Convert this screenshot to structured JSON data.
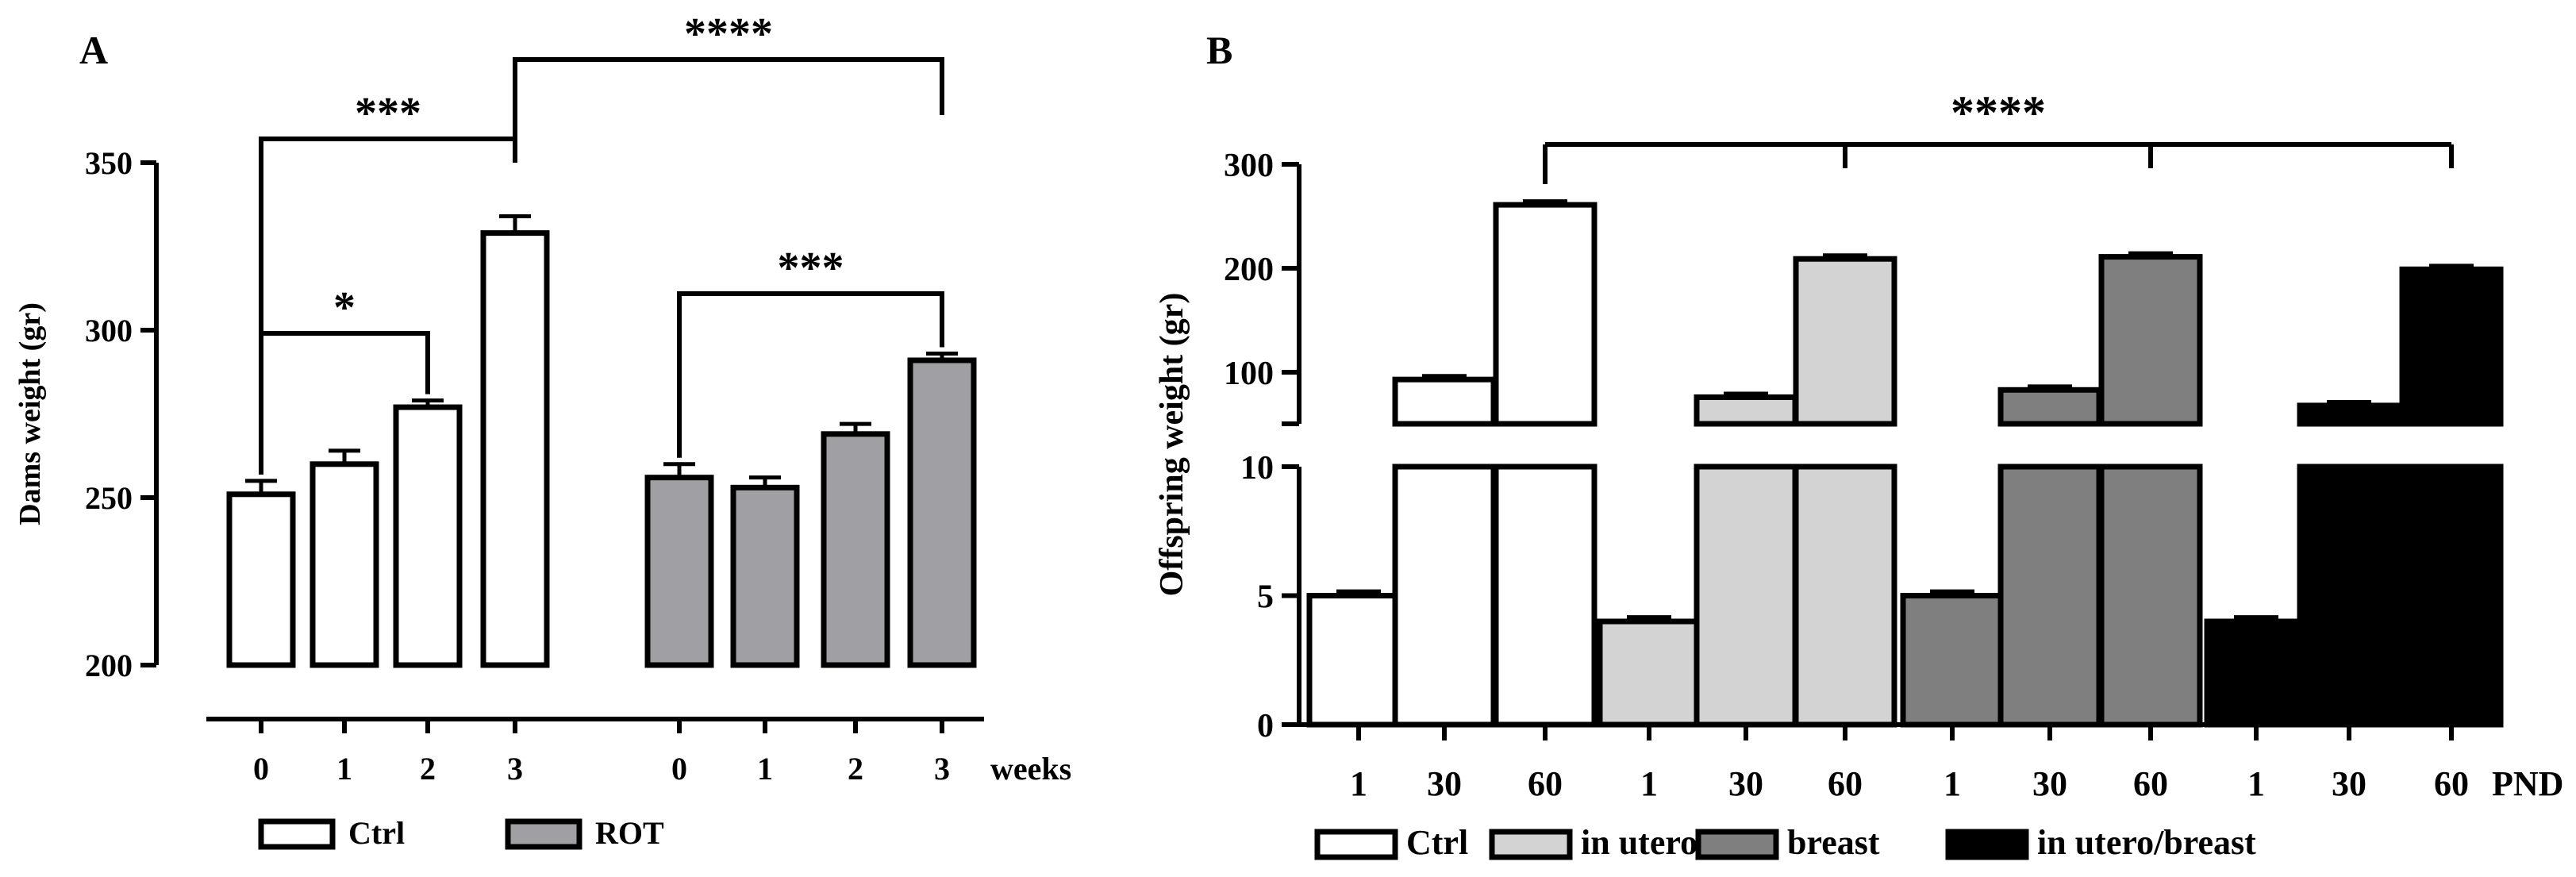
{
  "chart_data": [
    {
      "type": "bar",
      "panel_label": "A",
      "ylabel": "Dams weight (gr)",
      "xlabel": "weeks",
      "ylim": [
        200,
        350
      ],
      "yticks": [
        200,
        250,
        300,
        350
      ],
      "groups": [
        {
          "name": "Ctrl",
          "color": "#ffffff",
          "categories": [
            "0",
            "1",
            "2",
            "3"
          ],
          "values": [
            251,
            260,
            277,
            329
          ],
          "errors": [
            4,
            4,
            2,
            5
          ]
        },
        {
          "name": "ROT",
          "color": "#a0a0a4",
          "categories": [
            "0",
            "1",
            "2",
            "3"
          ],
          "values": [
            256,
            253,
            269,
            291
          ],
          "errors": [
            4,
            3,
            3,
            2
          ]
        }
      ],
      "significance": [
        {
          "label": "*",
          "group_from": 0,
          "bar_from": 0,
          "group_to": 0,
          "bar_to": 2
        },
        {
          "label": "***",
          "group_from": 0,
          "bar_from": 0,
          "group_to": 0,
          "bar_to": 3
        },
        {
          "label": "****",
          "group_from": 0,
          "bar_from": 3,
          "group_to": 1,
          "bar_to": 3
        },
        {
          "label": "***",
          "group_from": 1,
          "bar_from": 0,
          "group_to": 1,
          "bar_to": 3
        }
      ],
      "legend": [
        "Ctrl",
        "ROT"
      ]
    },
    {
      "type": "bar",
      "panel_label": "B",
      "ylabel": "Offspring weight (gr)",
      "xlabel": "PND",
      "axis_break": true,
      "yticks_lower": [
        0,
        5,
        10
      ],
      "yticks_upper": [
        100,
        200,
        300
      ],
      "groups": [
        {
          "name": "Ctrl",
          "color": "#ffffff",
          "categories": [
            "1",
            "30",
            "60"
          ],
          "values": [
            5,
            93,
            261
          ],
          "errors": [
            0.1,
            3,
            3
          ]
        },
        {
          "name": "in utero",
          "color": "#d3d3d3",
          "categories": [
            "1",
            "30",
            "60"
          ],
          "values": [
            4,
            76,
            209
          ],
          "errors": [
            0.1,
            3,
            3
          ]
        },
        {
          "name": "breast",
          "color": "#7f7f7f",
          "categories": [
            "1",
            "30",
            "60"
          ],
          "values": [
            5,
            83,
            211
          ],
          "errors": [
            0.1,
            3,
            3
          ]
        },
        {
          "name": "in utero/breast",
          "color": "#000000",
          "categories": [
            "1",
            "30",
            "60"
          ],
          "values": [
            4,
            68,
            199
          ],
          "errors": [
            0.1,
            3,
            3
          ]
        }
      ],
      "significance": [
        {
          "label": "****",
          "from": "Ctrl PND 60",
          "to": [
            "in utero PND 60",
            "breast PND 60",
            "in utero/breast PND 60"
          ]
        }
      ],
      "legend": [
        "Ctrl",
        "in utero",
        "breast",
        "in utero/breast"
      ]
    }
  ]
}
